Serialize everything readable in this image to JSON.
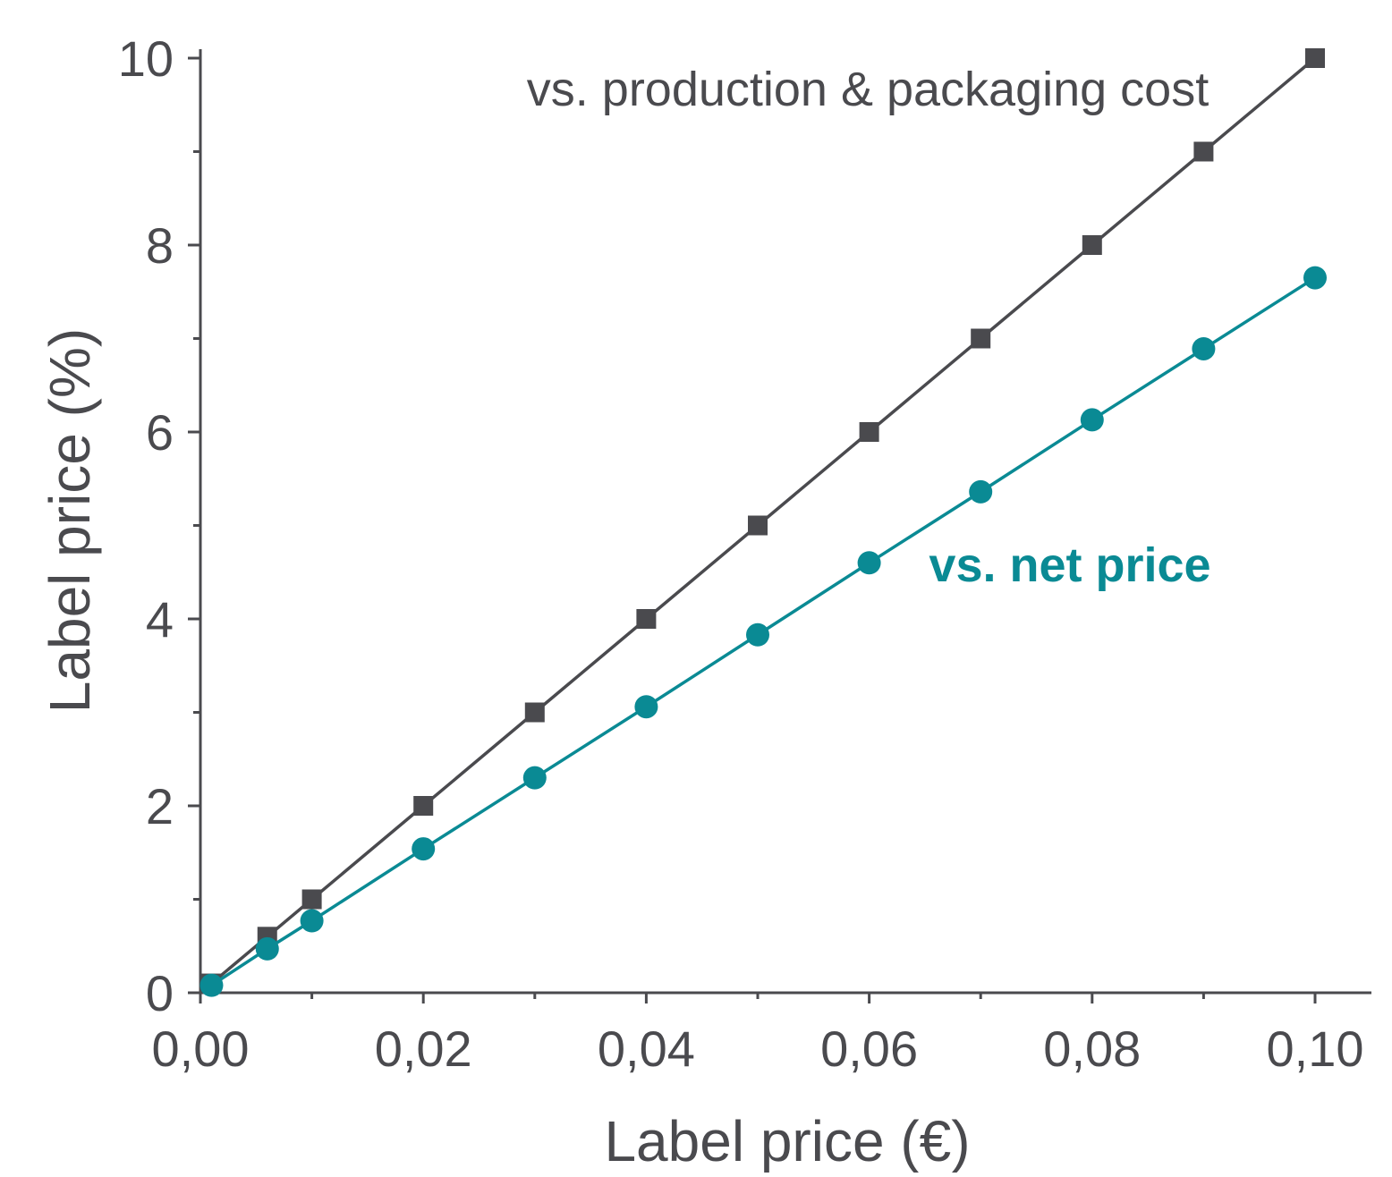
{
  "chart_data": {
    "type": "line",
    "xlabel": "Label price (€)",
    "ylabel": "Label price (%)",
    "xlim": [
      0,
      0.105
    ],
    "ylim": [
      0,
      10.5
    ],
    "x_ticks": [
      "0,00",
      "0,02",
      "0,04",
      "0,06",
      "0,08",
      "0,10"
    ],
    "x_tick_values": [
      0,
      0.02,
      0.04,
      0.06,
      0.08,
      0.1
    ],
    "y_ticks": [
      "0",
      "2",
      "4",
      "6",
      "8",
      "10"
    ],
    "y_tick_values": [
      0,
      2,
      4,
      6,
      8,
      10
    ],
    "grid": false,
    "series": [
      {
        "name": "vs. production & packaging cost",
        "marker": "square",
        "color": "#4a4a4e",
        "x": [
          0.001,
          0.006,
          0.01,
          0.02,
          0.03,
          0.04,
          0.05,
          0.06,
          0.07,
          0.08,
          0.09,
          0.1
        ],
        "y": [
          0.1,
          0.6,
          1.0,
          2.0,
          3.0,
          4.0,
          5.0,
          6.0,
          7.0,
          8.0,
          9.0,
          10.0
        ]
      },
      {
        "name": "vs. net price",
        "marker": "circle",
        "color": "#0a8a94",
        "x": [
          0.001,
          0.006,
          0.01,
          0.02,
          0.03,
          0.04,
          0.05,
          0.06,
          0.07,
          0.08,
          0.09,
          0.1
        ],
        "y": [
          0.08,
          0.47,
          0.77,
          1.54,
          2.3,
          3.06,
          3.83,
          4.6,
          5.36,
          6.13,
          6.89,
          7.65
        ]
      }
    ]
  }
}
